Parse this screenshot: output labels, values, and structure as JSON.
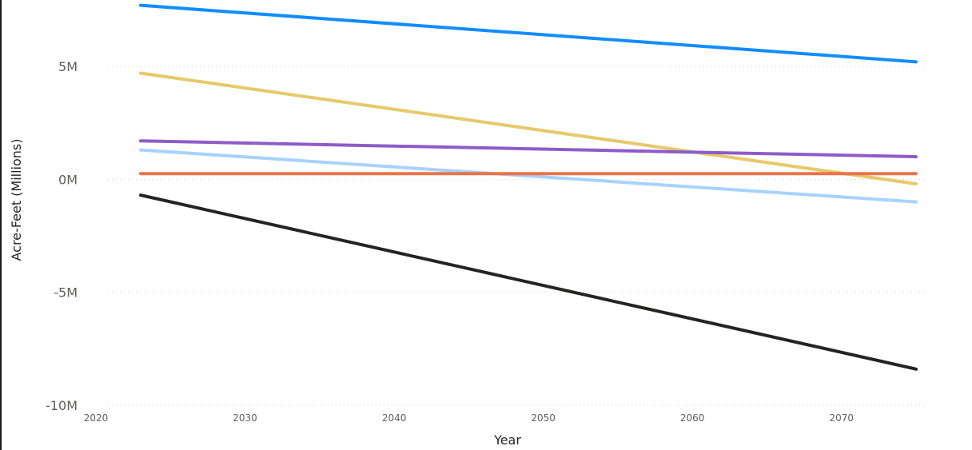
{
  "chart_data": {
    "type": "line",
    "title": "",
    "xlabel": "Year",
    "ylabel": "Acre-Feet (Millions)",
    "xlim": [
      2020,
      2075
    ],
    "ylim": [
      -10000000,
      7500000
    ],
    "x_ticks": [
      2020,
      2030,
      2040,
      2050,
      2060,
      2070
    ],
    "x_tick_labels": [
      "2020",
      "2030",
      "2040",
      "2050",
      "2060",
      "2070"
    ],
    "y_ticks": [
      5000000,
      0,
      -5000000,
      -10000000
    ],
    "y_tick_labels": [
      "5M",
      "0M",
      "-5M",
      "-10M"
    ],
    "grid": true,
    "legend": "none",
    "x": [
      2023,
      2075
    ],
    "series": [
      {
        "color": "#118dff",
        "values": [
          7700000,
          5200000
        ]
      },
      {
        "color": "#e8c869",
        "values": [
          4700000,
          -200000
        ]
      },
      {
        "color": "#8e5cc9",
        "values": [
          1700000,
          1000000
        ]
      },
      {
        "color": "#a7d2ff",
        "values": [
          1300000,
          -1000000
        ]
      },
      {
        "color": "#e8734a",
        "values": [
          250000,
          250000
        ]
      },
      {
        "color": "#252423",
        "values": [
          -700000,
          -8400000
        ]
      }
    ]
  }
}
